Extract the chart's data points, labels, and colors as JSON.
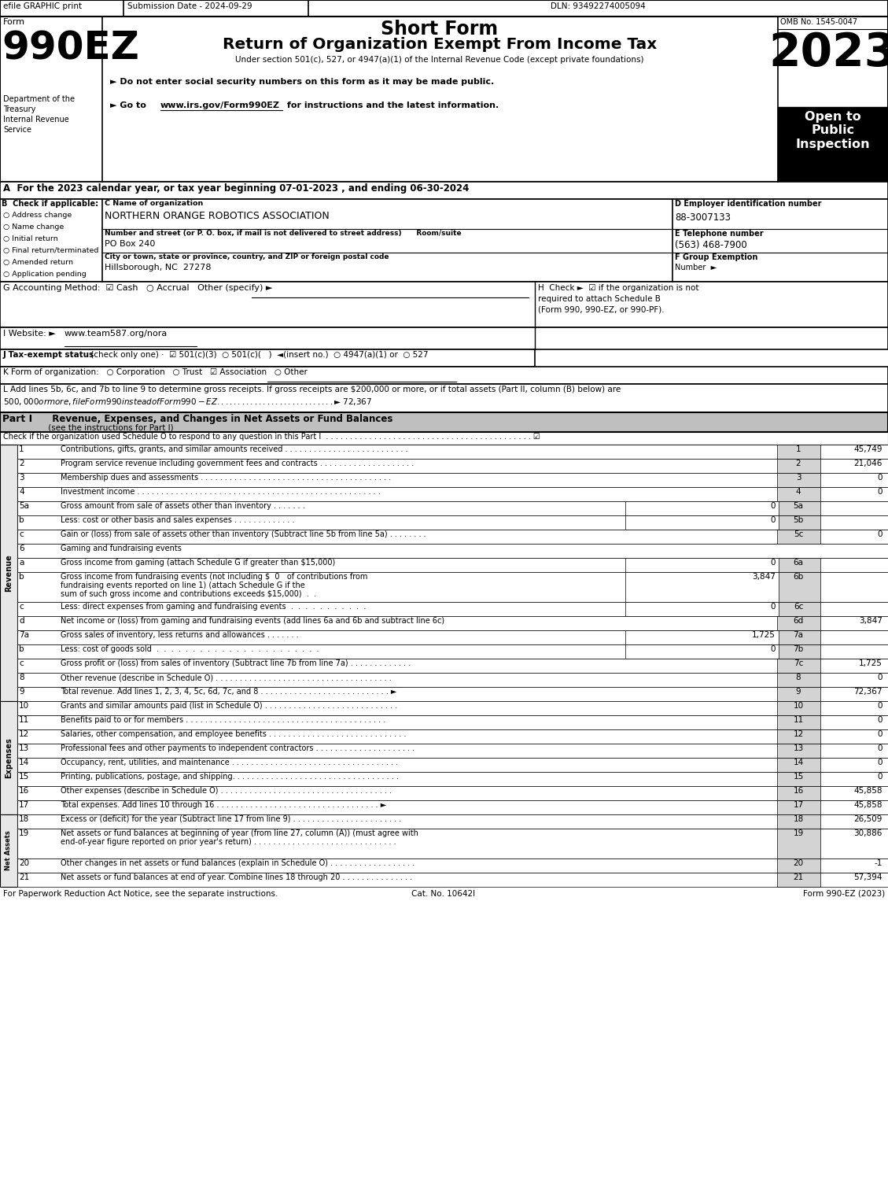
{
  "title_line1": "Short Form",
  "title_line2": "Return of Organization Exempt From Income Tax",
  "subtitle": "Under section 501(c), 527, or 4947(a)(1) of the Internal Revenue Code (except private foundations)",
  "year": "2023",
  "omb": "OMB No. 1545-0047",
  "efile_header": "efile GRAPHIC print",
  "submission_date": "Submission Date - 2024-09-29",
  "dln": "DLN: 93492274005094",
  "form_label": "Form",
  "form_number": "990EZ",
  "dept1": "Department of the",
  "dept2": "Treasury",
  "dept3": "Internal Revenue",
  "dept4": "Service",
  "bullet1": "► Do not enter social security numbers on this form as it may be made public.",
  "bullet2": "► Go to www.irs.gov/Form990EZ for instructions and the latest information.",
  "section_a": "A  For the 2023 calendar year, or tax year beginning 07-01-2023 , and ending 06-30-2024",
  "b_label": "B  Check if applicable:",
  "c_label": "C Name of organization",
  "org_name": "NORTHERN ORANGE ROBOTICS ASSOCIATION",
  "d_label": "D Employer identification number",
  "ein": "88-3007133",
  "addr_label": "Number and street (or P. O. box, if mail is not delivered to street address)      Room/suite",
  "address": "PO Box 240",
  "city_label": "City or town, state or province, country, and ZIP or foreign postal code",
  "city": "Hillsborough, NC  27278",
  "e_label": "E Telephone number",
  "phone": "(563) 468-7900",
  "f_label": "F Group Exemption",
  "f_label2": "Number  ►",
  "checkboxes_b": [
    "Address change",
    "Name change",
    "Initial return",
    "Final return/terminated",
    "Amended return",
    "Application pending"
  ],
  "footer_left": "For Paperwork Reduction Act Notice, see the separate instructions.",
  "footer_cat": "Cat. No. 10642I",
  "footer_right": "Form 990-EZ (2023)",
  "lines": [
    {
      "num": "1",
      "desc": "Contributions, gifts, grants, and similar amounts received . . . . . . . . . . . . . . . . . . . . . . . . . .",
      "line_num": "1",
      "value": "45,749",
      "box": false,
      "multiline": false,
      "tall": false
    },
    {
      "num": "2",
      "desc": "Program service revenue including government fees and contracts . . . . . . . . . . . . . . . . . . . .",
      "line_num": "2",
      "value": "21,046",
      "box": false,
      "multiline": false,
      "tall": false
    },
    {
      "num": "3",
      "desc": "Membership dues and assessments . . . . . . . . . . . . . . . . . . . . . . . . . . . . . . . . . . . . . . . .",
      "line_num": "3",
      "value": "0",
      "box": false,
      "multiline": false,
      "tall": false
    },
    {
      "num": "4",
      "desc": "Investment income . . . . . . . . . . . . . . . . . . . . . . . . . . . . . . . . . . . . . . . . . . . . . . . . . . .",
      "line_num": "4",
      "value": "0",
      "box": false,
      "multiline": false,
      "tall": false
    },
    {
      "num": "5a",
      "desc": "Gross amount from sale of assets other than inventory . . . . . . .",
      "line_num": "5a",
      "value": "0",
      "box": true,
      "multiline": false,
      "tall": false
    },
    {
      "num": "b",
      "desc": "Less: cost or other basis and sales expenses . . . . . . . . . . . . .",
      "line_num": "5b",
      "value": "0",
      "box": true,
      "multiline": false,
      "tall": false
    },
    {
      "num": "c",
      "desc": "Gain or (loss) from sale of assets other than inventory (Subtract line 5b from line 5a) . . . . . . . .",
      "line_num": "5c",
      "value": "0",
      "box": false,
      "multiline": false,
      "tall": false
    },
    {
      "num": "6",
      "desc": "Gaming and fundraising events",
      "line_num": "",
      "value": "",
      "box": false,
      "multiline": false,
      "tall": false
    },
    {
      "num": "a",
      "desc": "Gross income from gaming (attach Schedule G if greater than $15,000)",
      "line_num": "6a",
      "value": "0",
      "box": true,
      "multiline": false,
      "tall": false
    },
    {
      "num": "b",
      "desc": "Gross income from fundraising events (not including $  0   of contributions from\nfundraising events reported on line 1) (attach Schedule G if the\nsum of such gross income and contributions exceeds $15,000)  .  .",
      "line_num": "6b",
      "value": "3,847",
      "box": true,
      "multiline": true,
      "tall": true
    },
    {
      "num": "c",
      "desc": "Less: direct expenses from gaming and fundraising events  .  .  .  .  .  .  .  .  .  .  .",
      "line_num": "6c",
      "value": "0",
      "box": true,
      "multiline": false,
      "tall": false
    },
    {
      "num": "d",
      "desc": "Net income or (loss) from gaming and fundraising events (add lines 6a and 6b and subtract line 6c)",
      "line_num": "6d",
      "value": "3,847",
      "box": false,
      "multiline": false,
      "tall": false
    },
    {
      "num": "7a",
      "desc": "Gross sales of inventory, less returns and allowances . . . . . . .",
      "line_num": "7a",
      "value": "1,725",
      "box": true,
      "multiline": false,
      "tall": false
    },
    {
      "num": "b",
      "desc": "Less: cost of goods sold  .  .  .  .  .  .  .  .  .  .  .  .  .  .  .  .  .  .  .  .  .  .  .",
      "line_num": "7b",
      "value": "0",
      "box": true,
      "multiline": false,
      "tall": false
    },
    {
      "num": "c",
      "desc": "Gross profit or (loss) from sales of inventory (Subtract line 7b from line 7a) . . . . . . . . . . . . .",
      "line_num": "7c",
      "value": "1,725",
      "box": false,
      "multiline": false,
      "tall": false
    },
    {
      "num": "8",
      "desc": "Other revenue (describe in Schedule O) . . . . . . . . . . . . . . . . . . . . . . . . . . . . . . . . . . . . .",
      "line_num": "8",
      "value": "0",
      "box": false,
      "multiline": false,
      "tall": false
    },
    {
      "num": "9",
      "desc": "Total revenue. Add lines 1, 2, 3, 4, 5c, 6d, 7c, and 8 . . . . . . . . . . . . . . . . . . . . . . . . . . . ►",
      "line_num": "9",
      "value": "72,367",
      "box": false,
      "multiline": false,
      "tall": false
    },
    {
      "num": "10",
      "desc": "Grants and similar amounts paid (list in Schedule O) . . . . . . . . . . . . . . . . . . . . . . . . . . . .",
      "line_num": "10",
      "value": "0",
      "box": false,
      "multiline": false,
      "tall": false
    },
    {
      "num": "11",
      "desc": "Benefits paid to or for members . . . . . . . . . . . . . . . . . . . . . . . . . . . . . . . . . . . . . . . . . .",
      "line_num": "11",
      "value": "0",
      "box": false,
      "multiline": false,
      "tall": false
    },
    {
      "num": "12",
      "desc": "Salaries, other compensation, and employee benefits . . . . . . . . . . . . . . . . . . . . . . . . . . . . .",
      "line_num": "12",
      "value": "0",
      "box": false,
      "multiline": false,
      "tall": false
    },
    {
      "num": "13",
      "desc": "Professional fees and other payments to independent contractors . . . . . . . . . . . . . . . . . . . . .",
      "line_num": "13",
      "value": "0",
      "box": false,
      "multiline": false,
      "tall": false
    },
    {
      "num": "14",
      "desc": "Occupancy, rent, utilities, and maintenance . . . . . . . . . . . . . . . . . . . . . . . . . . . . . . . . . . .",
      "line_num": "14",
      "value": "0",
      "box": false,
      "multiline": false,
      "tall": false
    },
    {
      "num": "15",
      "desc": "Printing, publications, postage, and shipping. . . . . . . . . . . . . . . . . . . . . . . . . . . . . . . . . . .",
      "line_num": "15",
      "value": "0",
      "box": false,
      "multiline": false,
      "tall": false
    },
    {
      "num": "16",
      "desc": "Other expenses (describe in Schedule O) . . . . . . . . . . . . . . . . . . . . . . . . . . . . . . . . . . . .",
      "line_num": "16",
      "value": "45,858",
      "box": false,
      "multiline": false,
      "tall": false
    },
    {
      "num": "17",
      "desc": "Total expenses. Add lines 10 through 16 . . . . . . . . . . . . . . . . . . . . . . . . . . . . . . . . . . ►",
      "line_num": "17",
      "value": "45,858",
      "box": false,
      "multiline": false,
      "tall": false
    },
    {
      "num": "18",
      "desc": "Excess or (deficit) for the year (Subtract line 17 from line 9) . . . . . . . . . . . . . . . . . . . . . . .",
      "line_num": "18",
      "value": "26,509",
      "box": false,
      "multiline": false,
      "tall": false
    },
    {
      "num": "19",
      "desc": "Net assets or fund balances at beginning of year (from line 27, column (A)) (must agree with\nend-of-year figure reported on prior year's return) . . . . . . . . . . . . . . . . . . . . . . . . . . . . . .",
      "line_num": "19",
      "value": "30,886",
      "box": false,
      "multiline": true,
      "tall": true
    },
    {
      "num": "20",
      "desc": "Other changes in net assets or fund balances (explain in Schedule O) . . . . . . . . . . . . . . . . . .",
      "line_num": "20",
      "value": "-1",
      "box": false,
      "multiline": false,
      "tall": false
    },
    {
      "num": "21",
      "desc": "Net assets or fund balances at end of year. Combine lines 18 through 20 . . . . . . . . . . . . . . .",
      "line_num": "21",
      "value": "57,394",
      "box": false,
      "multiline": false,
      "tall": false
    }
  ]
}
